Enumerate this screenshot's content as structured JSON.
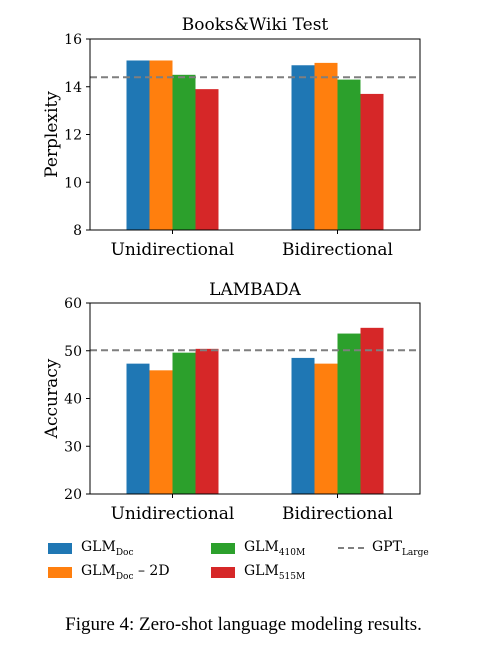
{
  "chart_data": [
    {
      "type": "bar",
      "title": "Books&Wiki Test",
      "xlabel": "",
      "ylabel": "Perplexity",
      "categories": [
        "Unidirectional",
        "Bidirectional"
      ],
      "ylim": [
        8,
        16
      ],
      "yticks": [
        8,
        10,
        12,
        14,
        16
      ],
      "series": [
        {
          "name": "GLM_Doc",
          "values": [
            15.1,
            14.9
          ]
        },
        {
          "name": "GLM_Doc – 2D",
          "values": [
            15.1,
            15.0
          ]
        },
        {
          "name": "GLM_410M",
          "values": [
            14.5,
            14.3
          ]
        },
        {
          "name": "GLM_515M",
          "values": [
            13.9,
            13.7
          ]
        }
      ],
      "reference_line": {
        "name": "GPT_Large",
        "value": 14.4
      }
    },
    {
      "type": "bar",
      "title": "LAMBADA",
      "xlabel": "",
      "ylabel": "Accuracy",
      "categories": [
        "Unidirectional",
        "Bidirectional"
      ],
      "ylim": [
        20,
        60
      ],
      "yticks": [
        20,
        30,
        40,
        50,
        60
      ],
      "series": [
        {
          "name": "GLM_Doc",
          "values": [
            47.3,
            48.5
          ]
        },
        {
          "name": "GLM_Doc – 2D",
          "values": [
            45.9,
            47.3
          ]
        },
        {
          "name": "GLM_410M",
          "values": [
            49.6,
            53.6
          ]
        },
        {
          "name": "GLM_515M",
          "values": [
            50.4,
            54.8
          ]
        }
      ],
      "reference_line": {
        "name": "GPT_Large",
        "value": 50.1
      }
    }
  ],
  "legend": {
    "items": [
      {
        "main": "GLM",
        "sub": "Doc",
        "suffix": "",
        "color": "#1f77b4",
        "style": "bar"
      },
      {
        "main": "GLM",
        "sub": "410M",
        "suffix": "",
        "color": "#2ca02c",
        "style": "bar"
      },
      {
        "main": "GPT",
        "sub": "Large",
        "suffix": "",
        "color": "#7f7f7f",
        "style": "dashed"
      },
      {
        "main": "GLM",
        "sub": "Doc",
        "suffix": " – 2D",
        "color": "#ff7f0e",
        "style": "bar"
      },
      {
        "main": "GLM",
        "sub": "515M",
        "suffix": "",
        "color": "#d62728",
        "style": "bar"
      }
    ]
  },
  "colors": {
    "series": [
      "#1f77b4",
      "#ff7f0e",
      "#2ca02c",
      "#d62728"
    ],
    "reference_line": "#7f7f7f"
  },
  "caption": "Figure 4: Zero-shot language modeling results."
}
